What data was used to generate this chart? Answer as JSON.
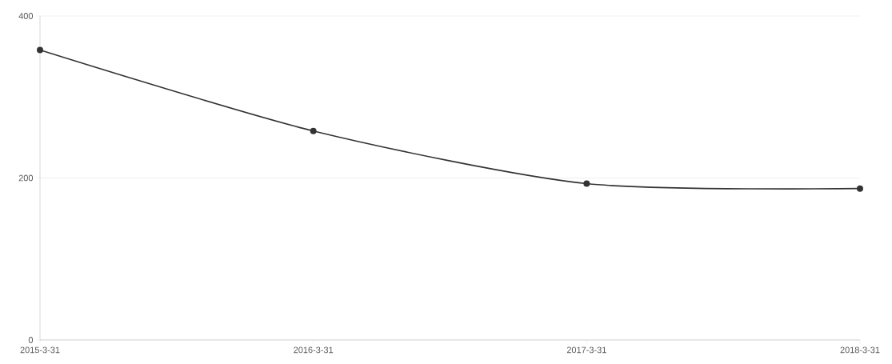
{
  "chart_data": {
    "type": "line",
    "categories": [
      "2015-3-31",
      "2016-3-31",
      "2017-3-31",
      "2018-3-31"
    ],
    "series": [
      {
        "color": "#333333",
        "values": [
          358,
          258,
          193,
          187
        ]
      }
    ],
    "ylim": [
      0,
      400
    ],
    "yticks": [
      0,
      200,
      400
    ],
    "grid": "y",
    "marker": "circle",
    "line_style": "solid"
  }
}
